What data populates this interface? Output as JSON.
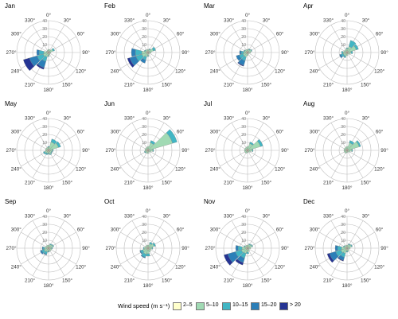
{
  "chart_data": {
    "type": "wind-rose",
    "unit": "%",
    "radial_ticks": [
      10,
      20,
      30,
      40
    ],
    "radial_max": 40,
    "direction_labels": [
      "0°",
      "30°",
      "60°",
      "90°",
      "120°",
      "150°",
      "180°",
      "210°",
      "240°",
      "270°",
      "300°",
      "330°"
    ],
    "sector_directions": [
      0,
      30,
      60,
      90,
      120,
      150,
      180,
      210,
      240,
      270,
      300,
      330
    ],
    "speed_classes": [
      "2–5",
      "5–10",
      "10–15",
      "15–20",
      "> 20"
    ],
    "colors": [
      "#ffffcc",
      "#a1dab4",
      "#41b6c4",
      "#2c7fb8",
      "#253494"
    ],
    "legend": {
      "title": "Wind speed (m s⁻¹)",
      "placement": "bottom"
    },
    "months": [
      {
        "name": "Jan",
        "sectors": [
          [
            2,
            2,
            0,
            0,
            0
          ],
          [
            2,
            2,
            0,
            0,
            0
          ],
          [
            2,
            4,
            2,
            0,
            0
          ],
          [
            2,
            1,
            0,
            0,
            0
          ],
          [
            1,
            1,
            0,
            0,
            0
          ],
          [
            2,
            1,
            0,
            0,
            0
          ],
          [
            2,
            2,
            1,
            0,
            0
          ],
          [
            2,
            4,
            6,
            8,
            2
          ],
          [
            2,
            5,
            8,
            10,
            8
          ],
          [
            2,
            4,
            6,
            3,
            0
          ],
          [
            2,
            1,
            0,
            0,
            0
          ],
          [
            2,
            1,
            0,
            0,
            0
          ]
        ]
      },
      {
        "name": "Feb",
        "sectors": [
          [
            2,
            2,
            0,
            0,
            0
          ],
          [
            2,
            2,
            1,
            0,
            0
          ],
          [
            2,
            5,
            3,
            0,
            0
          ],
          [
            2,
            2,
            0,
            0,
            0
          ],
          [
            1,
            1,
            0,
            0,
            0
          ],
          [
            1,
            1,
            0,
            0,
            0
          ],
          [
            2,
            2,
            1,
            0,
            0
          ],
          [
            2,
            4,
            4,
            4,
            0
          ],
          [
            2,
            6,
            8,
            8,
            3
          ],
          [
            2,
            6,
            8,
            5,
            0
          ],
          [
            2,
            2,
            1,
            0,
            0
          ],
          [
            2,
            2,
            0,
            0,
            0
          ]
        ]
      },
      {
        "name": "Mar",
        "sectors": [
          [
            2,
            2,
            0,
            0,
            0
          ],
          [
            2,
            2,
            1,
            0,
            0
          ],
          [
            2,
            3,
            1,
            0,
            0
          ],
          [
            2,
            2,
            0,
            0,
            0
          ],
          [
            1,
            1,
            0,
            0,
            0
          ],
          [
            1,
            1,
            0,
            0,
            0
          ],
          [
            2,
            2,
            0,
            0,
            0
          ],
          [
            2,
            4,
            5,
            6,
            1
          ],
          [
            2,
            4,
            5,
            4,
            0
          ],
          [
            2,
            3,
            3,
            2,
            0
          ],
          [
            2,
            2,
            1,
            0,
            0
          ],
          [
            2,
            2,
            0,
            0,
            0
          ]
        ]
      },
      {
        "name": "Apr",
        "sectors": [
          [
            2,
            3,
            1,
            0,
            0
          ],
          [
            2,
            6,
            8,
            0,
            0
          ],
          [
            2,
            10,
            3,
            0,
            0
          ],
          [
            2,
            3,
            2,
            0,
            0
          ],
          [
            2,
            2,
            0,
            0,
            0
          ],
          [
            1,
            1,
            0,
            0,
            0
          ],
          [
            2,
            2,
            0,
            0,
            0
          ],
          [
            2,
            3,
            2,
            0,
            0
          ],
          [
            2,
            3,
            3,
            2,
            0
          ],
          [
            2,
            3,
            2,
            0,
            0
          ],
          [
            2,
            2,
            0,
            0,
            0
          ],
          [
            2,
            2,
            0,
            0,
            0
          ]
        ]
      },
      {
        "name": "May",
        "sectors": [
          [
            2,
            2,
            1,
            0,
            0
          ],
          [
            2,
            9,
            4,
            0,
            0
          ],
          [
            2,
            11,
            3,
            0,
            0
          ],
          [
            2,
            3,
            1,
            0,
            0
          ],
          [
            2,
            2,
            1,
            0,
            0
          ],
          [
            2,
            3,
            1,
            0,
            0
          ],
          [
            2,
            2,
            1,
            0,
            0
          ],
          [
            2,
            2,
            2,
            0,
            0
          ],
          [
            2,
            3,
            2,
            0,
            0
          ],
          [
            2,
            2,
            0,
            0,
            0
          ],
          [
            2,
            2,
            0,
            0,
            0
          ],
          [
            2,
            2,
            0,
            0,
            0
          ]
        ]
      },
      {
        "name": "Jun",
        "sectors": [
          [
            2,
            3,
            0,
            0,
            0
          ],
          [
            2,
            8,
            3,
            0,
            0
          ],
          [
            2,
            30,
            6,
            0,
            0
          ],
          [
            2,
            4,
            1,
            0,
            0
          ],
          [
            2,
            2,
            0,
            0,
            0
          ],
          [
            1,
            1,
            0,
            0,
            0
          ],
          [
            2,
            2,
            0,
            0,
            0
          ],
          [
            2,
            2,
            0,
            0,
            0
          ],
          [
            2,
            2,
            1,
            0,
            0
          ],
          [
            2,
            2,
            0,
            0,
            0
          ],
          [
            2,
            2,
            0,
            0,
            0
          ],
          [
            2,
            2,
            0,
            0,
            0
          ]
        ]
      },
      {
        "name": "Jul",
        "sectors": [
          [
            2,
            3,
            0,
            0,
            0
          ],
          [
            2,
            7,
            2,
            0,
            0
          ],
          [
            2,
            15,
            3,
            0,
            0
          ],
          [
            2,
            4,
            1,
            0,
            0
          ],
          [
            2,
            2,
            0,
            0,
            0
          ],
          [
            1,
            1,
            0,
            0,
            0
          ],
          [
            2,
            1,
            0,
            0,
            0
          ],
          [
            2,
            2,
            0,
            0,
            0
          ],
          [
            2,
            2,
            0,
            0,
            0
          ],
          [
            2,
            2,
            0,
            0,
            0
          ],
          [
            2,
            2,
            0,
            0,
            0
          ],
          [
            2,
            2,
            0,
            0,
            0
          ]
        ]
      },
      {
        "name": "Aug",
        "sectors": [
          [
            2,
            3,
            0,
            0,
            0
          ],
          [
            2,
            8,
            3,
            0,
            0
          ],
          [
            2,
            14,
            2,
            0,
            0
          ],
          [
            2,
            4,
            1,
            0,
            0
          ],
          [
            2,
            2,
            0,
            0,
            0
          ],
          [
            1,
            1,
            0,
            0,
            0
          ],
          [
            2,
            1,
            0,
            0,
            0
          ],
          [
            2,
            2,
            0,
            0,
            0
          ],
          [
            2,
            2,
            0,
            0,
            0
          ],
          [
            2,
            2,
            0,
            0,
            0
          ],
          [
            2,
            2,
            0,
            0,
            0
          ],
          [
            2,
            2,
            0,
            0,
            0
          ]
        ]
      },
      {
        "name": "Sep",
        "sectors": [
          [
            2,
            2,
            0,
            0,
            0
          ],
          [
            2,
            3,
            1,
            0,
            0
          ],
          [
            2,
            4,
            1,
            0,
            0
          ],
          [
            2,
            2,
            1,
            0,
            0
          ],
          [
            2,
            2,
            0,
            0,
            0
          ],
          [
            2,
            2,
            0,
            0,
            0
          ],
          [
            2,
            2,
            1,
            0,
            0
          ],
          [
            2,
            3,
            3,
            1,
            0
          ],
          [
            2,
            4,
            3,
            2,
            0
          ],
          [
            2,
            3,
            2,
            1,
            0
          ],
          [
            2,
            2,
            0,
            0,
            0
          ],
          [
            2,
            2,
            0,
            0,
            0
          ]
        ]
      },
      {
        "name": "Oct",
        "sectors": [
          [
            2,
            2,
            0,
            0,
            0
          ],
          [
            2,
            4,
            2,
            0,
            0
          ],
          [
            2,
            6,
            2,
            0,
            0
          ],
          [
            2,
            3,
            1,
            0,
            0
          ],
          [
            2,
            2,
            0,
            0,
            0
          ],
          [
            2,
            3,
            0,
            0,
            0
          ],
          [
            2,
            5,
            3,
            0,
            0
          ],
          [
            2,
            6,
            4,
            1,
            0
          ],
          [
            2,
            5,
            3,
            1,
            0
          ],
          [
            2,
            3,
            1,
            0,
            0
          ],
          [
            2,
            2,
            0,
            0,
            0
          ],
          [
            2,
            2,
            0,
            0,
            0
          ]
        ]
      },
      {
        "name": "Nov",
        "sectors": [
          [
            2,
            2,
            0,
            0,
            0
          ],
          [
            2,
            3,
            1,
            0,
            0
          ],
          [
            2,
            4,
            1,
            0,
            0
          ],
          [
            2,
            2,
            0,
            0,
            0
          ],
          [
            1,
            1,
            0,
            0,
            0
          ],
          [
            2,
            2,
            0,
            0,
            0
          ],
          [
            2,
            3,
            2,
            0,
            0
          ],
          [
            2,
            5,
            6,
            6,
            3
          ],
          [
            2,
            6,
            8,
            10,
            5
          ],
          [
            2,
            5,
            5,
            3,
            0
          ],
          [
            2,
            2,
            1,
            0,
            0
          ],
          [
            2,
            2,
            0,
            0,
            0
          ]
        ]
      },
      {
        "name": "Dec",
        "sectors": [
          [
            2,
            2,
            0,
            0,
            0
          ],
          [
            2,
            3,
            1,
            0,
            0
          ],
          [
            2,
            4,
            1,
            0,
            0
          ],
          [
            2,
            2,
            0,
            0,
            0
          ],
          [
            1,
            1,
            0,
            0,
            0
          ],
          [
            2,
            2,
            0,
            0,
            0
          ],
          [
            2,
            2,
            1,
            0,
            0
          ],
          [
            2,
            5,
            5,
            4,
            1
          ],
          [
            2,
            6,
            7,
            8,
            3
          ],
          [
            2,
            5,
            5,
            3,
            0
          ],
          [
            2,
            2,
            1,
            0,
            0
          ],
          [
            2,
            2,
            0,
            0,
            0
          ]
        ]
      }
    ]
  }
}
